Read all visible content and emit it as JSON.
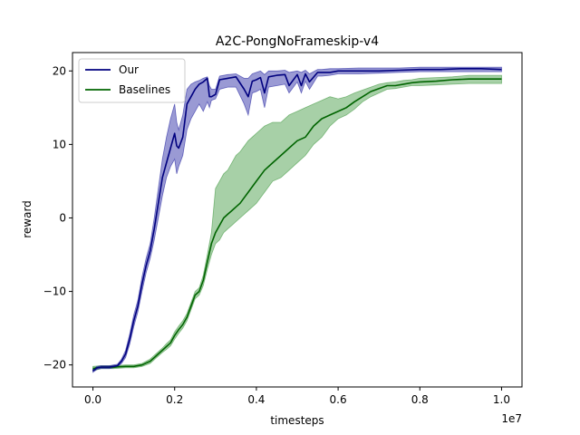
{
  "chart_data": {
    "type": "line",
    "title": "A2C-PongNoFrameskip-v4",
    "xlabel": "timesteps",
    "ylabel": "reward",
    "x_offset_label": "1e7",
    "xlim": [
      -0.05,
      1.05
    ],
    "ylim": [
      -23.0,
      22.5
    ],
    "xticks": [
      0.0,
      0.2,
      0.4,
      0.6,
      0.8,
      1.0
    ],
    "xtick_labels": [
      "0.0",
      "0.2",
      "0.4",
      "0.6",
      "0.8",
      "1.0"
    ],
    "yticks": [
      -20,
      -10,
      0,
      10,
      20
    ],
    "ytick_labels": [
      "−20",
      "−10",
      "0",
      "10",
      "20"
    ],
    "grid": false,
    "legend_position": "top-left",
    "series": [
      {
        "name": "Our",
        "color": "#00007f",
        "band_color": "#1f1f9f",
        "x": [
          0.0,
          0.01,
          0.02,
          0.04,
          0.06,
          0.07,
          0.08,
          0.09,
          0.1,
          0.11,
          0.12,
          0.13,
          0.14,
          0.15,
          0.16,
          0.17,
          0.18,
          0.19,
          0.2,
          0.205,
          0.21,
          0.22,
          0.23,
          0.24,
          0.25,
          0.26,
          0.27,
          0.28,
          0.285,
          0.29,
          0.3,
          0.31,
          0.33,
          0.35,
          0.37,
          0.38,
          0.39,
          0.4,
          0.41,
          0.42,
          0.43,
          0.45,
          0.47,
          0.48,
          0.5,
          0.51,
          0.52,
          0.53,
          0.55,
          0.56,
          0.58,
          0.6,
          0.65,
          0.7,
          0.75,
          0.8,
          0.85,
          0.9,
          0.95,
          1.0
        ],
        "y": [
          -20.8,
          -20.4,
          -20.3,
          -20.3,
          -20.1,
          -19.5,
          -18.5,
          -16.5,
          -14.0,
          -12.0,
          -9.0,
          -6.5,
          -4.5,
          -1.5,
          2.0,
          5.5,
          7.5,
          9.5,
          11.5,
          9.8,
          9.5,
          11.0,
          15.5,
          16.5,
          17.5,
          18.2,
          18.5,
          19.0,
          16.5,
          16.5,
          16.8,
          18.8,
          19.0,
          19.2,
          17.5,
          16.5,
          18.6,
          18.8,
          19.1,
          17.0,
          19.2,
          19.4,
          19.5,
          18.0,
          19.5,
          18.0,
          19.6,
          18.5,
          19.8,
          19.8,
          19.8,
          20.0,
          20.0,
          20.0,
          20.1,
          20.2,
          20.2,
          20.3,
          20.3,
          20.2
        ],
        "lower": [
          -21.0,
          -20.6,
          -20.5,
          -20.5,
          -20.3,
          -19.8,
          -19.0,
          -17.2,
          -14.8,
          -12.8,
          -10.0,
          -7.5,
          -5.5,
          -3.0,
          0.0,
          3.0,
          5.5,
          7.0,
          8.0,
          6.0,
          7.0,
          8.5,
          12.0,
          13.5,
          14.5,
          15.5,
          14.5,
          15.8,
          15.0,
          16.0,
          16.2,
          17.5,
          17.8,
          17.8,
          15.5,
          14.0,
          17.0,
          17.2,
          17.5,
          15.0,
          17.8,
          18.0,
          18.2,
          17.0,
          18.5,
          17.0,
          18.6,
          17.5,
          19.3,
          19.3,
          19.4,
          19.6,
          19.6,
          19.7,
          19.8,
          19.9,
          19.9,
          19.9,
          19.9,
          19.9
        ],
        "upper": [
          -20.6,
          -20.2,
          -20.1,
          -20.1,
          -19.9,
          -19.2,
          -18.0,
          -15.8,
          -13.2,
          -11.2,
          -8.0,
          -5.5,
          -3.5,
          0.0,
          4.0,
          8.0,
          11.0,
          13.5,
          15.5,
          13.0,
          12.0,
          14.0,
          17.5,
          18.2,
          18.5,
          18.7,
          19.0,
          19.2,
          18.0,
          17.5,
          17.5,
          19.3,
          19.5,
          19.6,
          19.0,
          19.0,
          19.6,
          19.8,
          20.0,
          19.5,
          20.0,
          20.0,
          20.1,
          19.8,
          20.0,
          19.8,
          20.1,
          19.6,
          20.2,
          20.2,
          20.3,
          20.3,
          20.4,
          20.4,
          20.4,
          20.5,
          20.5,
          20.5,
          20.5,
          20.5
        ]
      },
      {
        "name": "Baselines",
        "color": "#006400",
        "band_color": "#3c963c",
        "x": [
          0.0,
          0.02,
          0.05,
          0.08,
          0.1,
          0.12,
          0.14,
          0.15,
          0.16,
          0.17,
          0.18,
          0.19,
          0.2,
          0.21,
          0.22,
          0.23,
          0.24,
          0.25,
          0.26,
          0.27,
          0.28,
          0.29,
          0.3,
          0.31,
          0.32,
          0.33,
          0.34,
          0.35,
          0.36,
          0.38,
          0.4,
          0.42,
          0.44,
          0.46,
          0.48,
          0.5,
          0.52,
          0.54,
          0.56,
          0.58,
          0.6,
          0.62,
          0.64,
          0.66,
          0.68,
          0.7,
          0.72,
          0.74,
          0.76,
          0.78,
          0.8,
          0.84,
          0.88,
          0.92,
          0.96,
          1.0
        ],
        "y": [
          -20.5,
          -20.3,
          -20.3,
          -20.2,
          -20.2,
          -20.0,
          -19.5,
          -19.0,
          -18.5,
          -18.0,
          -17.5,
          -17.0,
          -16.0,
          -15.2,
          -14.5,
          -13.5,
          -12.0,
          -10.5,
          -10.0,
          -8.5,
          -6.0,
          -3.5,
          -2.0,
          -1.0,
          0.0,
          0.5,
          1.0,
          1.5,
          2.0,
          3.5,
          5.0,
          6.5,
          7.5,
          8.5,
          9.5,
          10.5,
          11.0,
          12.5,
          13.5,
          14.0,
          14.5,
          15.0,
          15.8,
          16.5,
          17.2,
          17.6,
          18.0,
          18.0,
          18.2,
          18.4,
          18.5,
          18.6,
          18.8,
          18.9,
          18.9,
          18.9
        ],
        "lower": [
          -20.8,
          -20.5,
          -20.5,
          -20.4,
          -20.4,
          -20.2,
          -19.8,
          -19.3,
          -18.8,
          -18.3,
          -17.9,
          -17.4,
          -16.5,
          -15.7,
          -15.0,
          -14.0,
          -12.5,
          -11.0,
          -10.5,
          -9.2,
          -7.0,
          -5.0,
          -3.5,
          -3.0,
          -2.0,
          -1.5,
          -1.0,
          -0.5,
          0.0,
          1.0,
          2.0,
          3.5,
          5.0,
          5.5,
          6.5,
          7.5,
          8.5,
          10.0,
          11.0,
          12.5,
          13.5,
          14.0,
          14.8,
          15.8,
          16.5,
          17.0,
          17.5,
          17.6,
          17.8,
          18.0,
          18.0,
          18.1,
          18.2,
          18.3,
          18.3,
          18.3
        ],
        "upper": [
          -20.2,
          -20.1,
          -20.1,
          -20.0,
          -20.0,
          -19.8,
          -19.2,
          -18.7,
          -18.2,
          -17.7,
          -17.1,
          -16.6,
          -15.5,
          -14.7,
          -14.0,
          -13.0,
          -11.5,
          -10.0,
          -9.5,
          -7.8,
          -5.0,
          -2.0,
          4.0,
          5.0,
          6.0,
          6.5,
          7.5,
          8.5,
          9.0,
          10.5,
          11.5,
          12.5,
          13.0,
          13.0,
          14.0,
          14.5,
          15.0,
          15.5,
          16.0,
          16.5,
          16.2,
          16.5,
          17.0,
          17.4,
          17.8,
          18.2,
          18.4,
          18.5,
          18.7,
          18.8,
          19.0,
          19.1,
          19.2,
          19.4,
          19.4,
          19.4
        ]
      }
    ]
  }
}
